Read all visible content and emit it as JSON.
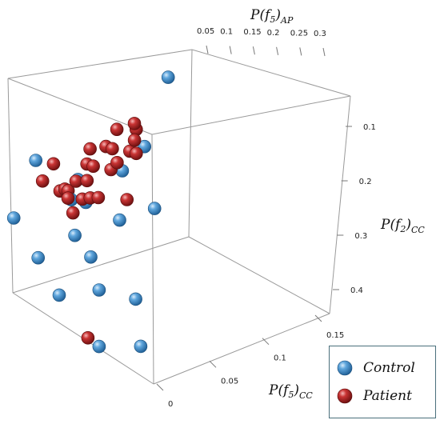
{
  "chart_data": {
    "type": "scatter",
    "x_axis": {
      "label_main": "P(f",
      "label_sub_index": "5",
      "label_close": ")",
      "label_subscript": "AP",
      "range": [
        0.05,
        0.3
      ],
      "ticks": [
        "0.05",
        "0.1",
        "0.15",
        "0.2",
        "0.25",
        "0.3"
      ]
    },
    "y_axis": {
      "label_main": "P(f",
      "label_sub_index": "2",
      "label_close": ")",
      "label_subscript": "CC",
      "range": [
        0.1,
        0.4
      ],
      "ticks": [
        "0.1",
        "0.2",
        "0.3",
        "0.4"
      ]
    },
    "z_axis": {
      "label_main": "P(f",
      "label_sub_index": "5",
      "label_close": ")",
      "label_subscript": "CC",
      "range": [
        0,
        0.15
      ],
      "ticks": [
        "0",
        "0.05",
        "0.1",
        "0.15"
      ]
    },
    "legend": {
      "placement": "bottom-right",
      "items": [
        {
          "label": "Control",
          "color": "#3a86c8"
        },
        {
          "label": "Patient",
          "color": "#b52525"
        }
      ]
    },
    "series": [
      {
        "name": "Control",
        "color": "#3a86c8",
        "points": [
          [
            0.08,
            0.28,
            0.15
          ],
          [
            0.27,
            0.13,
            0.02
          ],
          [
            0.24,
            0.21,
            0.04
          ],
          [
            0.22,
            0.24,
            0.06
          ],
          [
            0.1,
            0.21,
            0.13
          ],
          [
            0.14,
            0.26,
            0.1
          ],
          [
            0.23,
            0.3,
            0.1
          ],
          [
            0.14,
            0.32,
            0.08
          ],
          [
            0.12,
            0.34,
            0.03
          ],
          [
            0.18,
            0.4,
            0.12
          ],
          [
            0.09,
            0.38,
            0.02
          ],
          [
            0.07,
            0.39,
            0.06
          ],
          [
            0.22,
            0.34,
            0.11
          ],
          [
            0.24,
            0.28,
            0.03
          ],
          [
            0.26,
            0.32,
            0.07
          ],
          [
            0.19,
            0.38,
            0.08
          ],
          [
            0.17,
            0.36,
            0.14
          ],
          [
            0.3,
            0.31,
            0.12
          ]
        ]
      },
      {
        "name": "Patient",
        "color": "#b52525",
        "points": [
          [
            0.06,
            0.1,
            0.02
          ],
          [
            0.06,
            0.12,
            0.02
          ],
          [
            0.07,
            0.12,
            0.04
          ],
          [
            0.07,
            0.14,
            0.02
          ],
          [
            0.09,
            0.15,
            0.03
          ],
          [
            0.13,
            0.14,
            0.03
          ],
          [
            0.07,
            0.16,
            0.04
          ],
          [
            0.1,
            0.16,
            0.05
          ],
          [
            0.12,
            0.17,
            0.06
          ],
          [
            0.07,
            0.2,
            0.03
          ],
          [
            0.1,
            0.19,
            0.07
          ],
          [
            0.14,
            0.19,
            0.08
          ],
          [
            0.12,
            0.2,
            0.08
          ],
          [
            0.15,
            0.21,
            0.06
          ],
          [
            0.08,
            0.22,
            0.07
          ],
          [
            0.12,
            0.22,
            0.08
          ],
          [
            0.09,
            0.23,
            0.08
          ],
          [
            0.15,
            0.23,
            0.12
          ],
          [
            0.13,
            0.24,
            0.07
          ],
          [
            0.12,
            0.25,
            0.1
          ],
          [
            0.13,
            0.25,
            0.11
          ],
          [
            0.17,
            0.25,
            0.1
          ],
          [
            0.16,
            0.26,
            0.11
          ],
          [
            0.18,
            0.27,
            0.11
          ],
          [
            0.15,
            0.28,
            0.1
          ],
          [
            0.2,
            0.28,
            0.14
          ],
          [
            0.06,
            0.38,
            0.07
          ]
        ]
      }
    ]
  }
}
